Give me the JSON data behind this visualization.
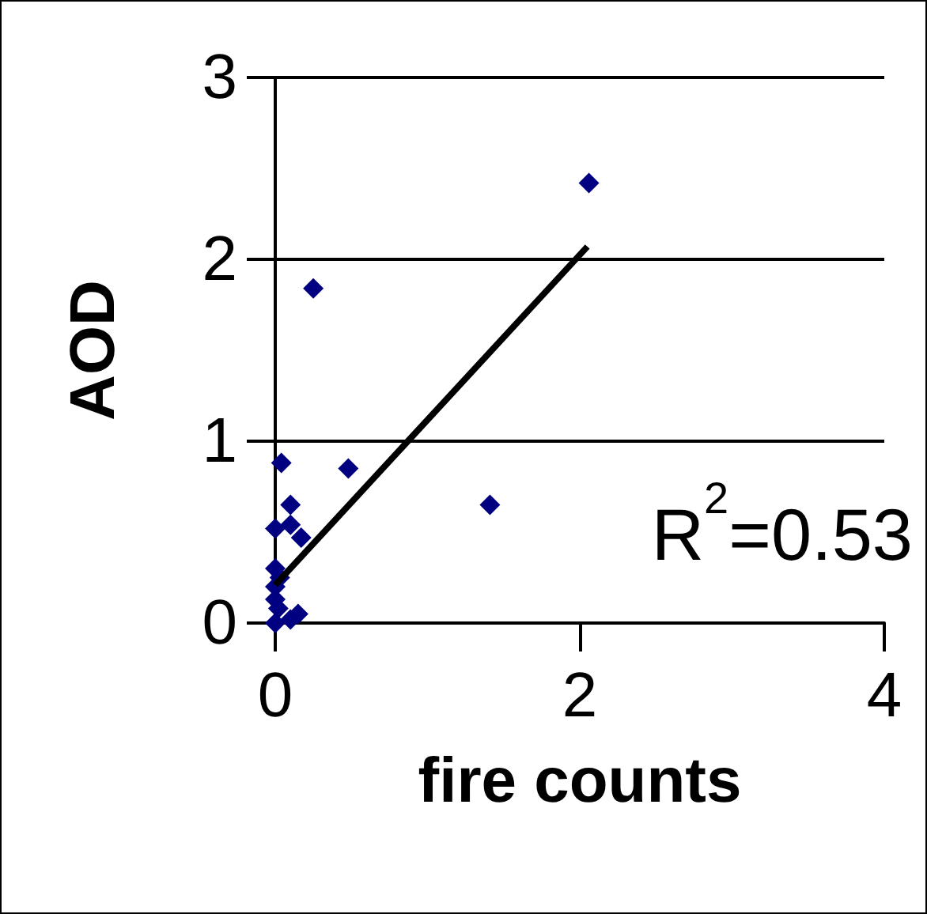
{
  "chart_data": {
    "type": "scatter",
    "xlabel": "fire counts",
    "ylabel": "AOD",
    "xlim": [
      0,
      4
    ],
    "xticks": [
      0,
      2,
      4
    ],
    "ylim": [
      0,
      3
    ],
    "yticks": [
      0,
      1,
      2,
      3
    ],
    "grid": "y",
    "marker": "diamond",
    "annotations": [
      "R$^{2}$=0.53"
    ],
    "series": [
      {
        "color": "#000080",
        "x": [
          2.06,
          0.25,
          0.04,
          0.48,
          1.41,
          0.1,
          0.1,
          0,
          0.17,
          0,
          0,
          0,
          0.15,
          0.1,
          0,
          0.02,
          0.03
        ],
        "values": [
          2.42,
          1.84,
          0.88,
          0.85,
          0.65,
          0.65,
          0.54,
          0.52,
          0.47,
          0.3,
          0.2,
          0.13,
          0.05,
          0.02,
          0,
          0.08,
          0.25
        ]
      },
      {
        "type": "line",
        "color": "#000000",
        "marker": "none",
        "x": [
          0,
          2.05
        ],
        "values": [
          0.21,
          2.07
        ]
      }
    ]
  }
}
